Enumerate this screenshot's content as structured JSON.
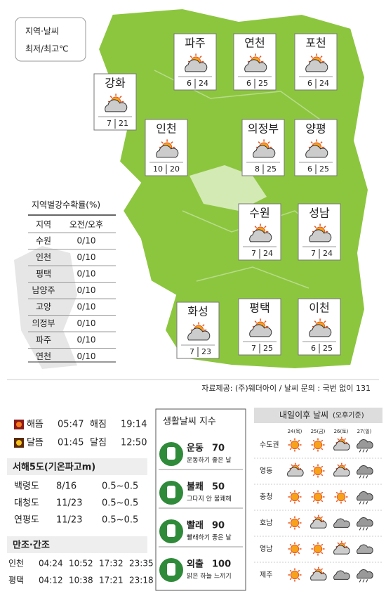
{
  "legend": {
    "title": "지역·날씨",
    "subtitle": "최저/최고℃"
  },
  "cities": [
    {
      "name": "파주",
      "low": 6,
      "high": 24
    },
    {
      "name": "연천",
      "low": 6,
      "high": 25
    },
    {
      "name": "포천",
      "low": 6,
      "high": 24
    },
    {
      "name": "강화",
      "low": 7,
      "high": 21
    },
    {
      "name": "인천",
      "low": 10,
      "high": 20
    },
    {
      "name": "의정부",
      "low": 8,
      "high": 25
    },
    {
      "name": "양평",
      "low": 6,
      "high": 25
    },
    {
      "name": "수원",
      "low": 7,
      "high": 24
    },
    {
      "name": "성남",
      "low": 7,
      "high": 24
    },
    {
      "name": "화성",
      "low": 7,
      "high": 23
    },
    {
      "name": "평택",
      "low": 7,
      "high": 25
    },
    {
      "name": "이천",
      "low": 6,
      "high": 25
    }
  ],
  "rain_table": {
    "title": "지역별강수확률(%)",
    "headers": [
      "지역",
      "오전/오후"
    ],
    "rows": [
      [
        "수원",
        "0/10"
      ],
      [
        "인천",
        "0/10"
      ],
      [
        "평택",
        "0/10"
      ],
      [
        "남양주",
        "0/10"
      ],
      [
        "고양",
        "0/10"
      ],
      [
        "의정부",
        "0/10"
      ],
      [
        "파주",
        "0/10"
      ],
      [
        "연천",
        "0/10"
      ]
    ]
  },
  "source": "자료제공: (주)웨더아이 / 날씨 문의 : 국번 없이 131",
  "sun_moon": [
    [
      "해뜸",
      "05:47",
      "해짐",
      "19:14"
    ],
    [
      "달뜸",
      "01:45",
      "달짐",
      "12:50"
    ]
  ],
  "sea": {
    "title": "서해5도(기온파고m)",
    "rows": [
      [
        "백령도",
        "8/16",
        "0.5~0.5"
      ],
      [
        "대청도",
        "11/23",
        "0.5~0.5"
      ],
      [
        "연평도",
        "11/23",
        "0.5~0.5"
      ]
    ]
  },
  "tide": {
    "title": "만조·간조",
    "rows": [
      [
        "인천",
        "04:24",
        "10:52",
        "17:32",
        "23:35"
      ],
      [
        "평택",
        "04:12",
        "10:38",
        "17:21",
        "23:18"
      ]
    ]
  },
  "life_index": {
    "title": "생활날씨 지수",
    "items": [
      {
        "name": "운동",
        "value": 70,
        "desc": "운동하기 좋은 날"
      },
      {
        "name": "불쾌",
        "value": 50,
        "desc": "그다지 안 불쾌해"
      },
      {
        "name": "빨래",
        "value": 90,
        "desc": "빨래하기 좋은 날"
      },
      {
        "name": "외출",
        "value": 100,
        "desc": "맑은 하늘 느끼기"
      }
    ]
  },
  "forecast": {
    "title": "내일이후 날씨",
    "note": "(오후기준)",
    "days": [
      "24(목)",
      "25(금)",
      "26(토)",
      "27(일)"
    ],
    "regions": [
      "수도권",
      "영동",
      "충청",
      "호남",
      "영남",
      "제주"
    ]
  }
}
